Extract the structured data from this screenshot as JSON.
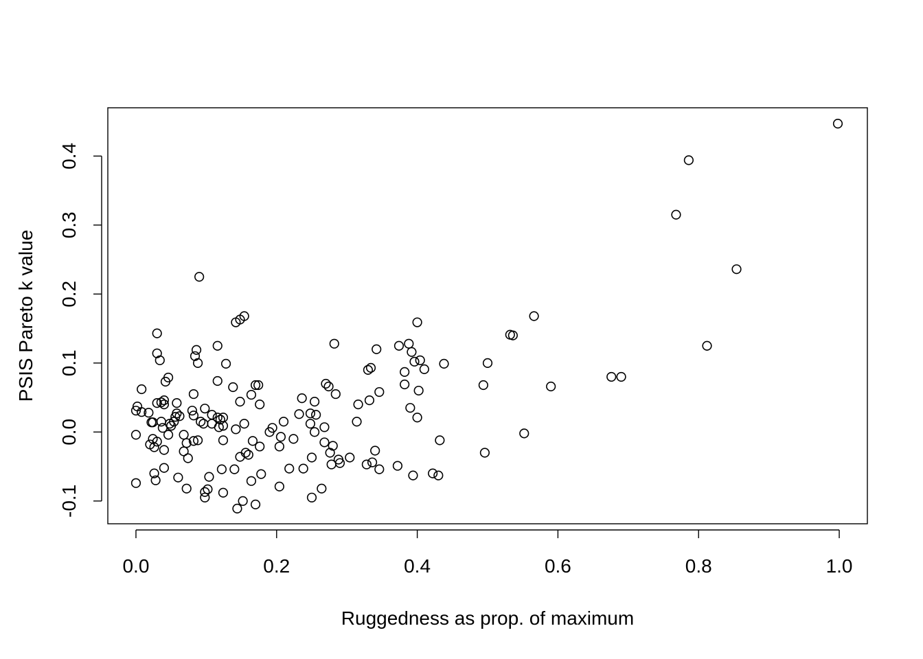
{
  "chart_data": {
    "type": "scatter",
    "title": "",
    "xlabel": "Ruggedness as prop. of maximum",
    "ylabel": "PSIS Pareto k value",
    "xlim": [
      -0.04,
      1.04
    ],
    "ylim": [
      -0.133,
      0.47
    ],
    "x_ticks": [
      0.0,
      0.2,
      0.4,
      0.6,
      0.8,
      1.0
    ],
    "x_tick_labels": [
      "0.0",
      "0.2",
      "0.4",
      "0.6",
      "0.8",
      "1.0"
    ],
    "y_ticks": [
      -0.1,
      0.0,
      0.1,
      0.2,
      0.3,
      0.4
    ],
    "y_tick_labels": [
      "-0.1",
      "0.0",
      "0.1",
      "0.2",
      "0.3",
      "0.4"
    ],
    "grid": false,
    "marker": "open-circle",
    "points": [
      [
        0.0,
        0.031
      ],
      [
        0.002,
        0.037
      ],
      [
        0.008,
        0.029
      ],
      [
        0.0,
        -0.004
      ],
      [
        0.0,
        -0.074
      ],
      [
        0.008,
        0.062
      ],
      [
        0.018,
        0.028
      ],
      [
        0.022,
        0.014
      ],
      [
        0.02,
        -0.018
      ],
      [
        0.024,
        -0.01
      ],
      [
        0.024,
        0.014
      ],
      [
        0.026,
        -0.022
      ],
      [
        0.026,
        -0.06
      ],
      [
        0.028,
        -0.07
      ],
      [
        0.03,
        -0.014
      ],
      [
        0.03,
        0.042
      ],
      [
        0.03,
        0.114
      ],
      [
        0.03,
        0.143
      ],
      [
        0.034,
        0.104
      ],
      [
        0.036,
        0.043
      ],
      [
        0.036,
        0.015
      ],
      [
        0.038,
        0.006
      ],
      [
        0.04,
        0.04
      ],
      [
        0.04,
        0.046
      ],
      [
        0.04,
        -0.026
      ],
      [
        0.04,
        -0.052
      ],
      [
        0.042,
        0.073
      ],
      [
        0.046,
        0.079
      ],
      [
        0.046,
        -0.004
      ],
      [
        0.048,
        0.012
      ],
      [
        0.05,
        0.009
      ],
      [
        0.054,
        0.015
      ],
      [
        0.056,
        0.022
      ],
      [
        0.058,
        0.027
      ],
      [
        0.058,
        0.042
      ],
      [
        0.062,
        0.023
      ],
      [
        0.06,
        -0.066
      ],
      [
        0.068,
        -0.004
      ],
      [
        0.068,
        -0.028
      ],
      [
        0.072,
        -0.082
      ],
      [
        0.072,
        -0.016
      ],
      [
        0.074,
        -0.038
      ],
      [
        0.08,
        0.031
      ],
      [
        0.082,
        0.024
      ],
      [
        0.082,
        -0.013
      ],
      [
        0.082,
        0.055
      ],
      [
        0.084,
        0.11
      ],
      [
        0.086,
        0.119
      ],
      [
        0.088,
        0.1
      ],
      [
        0.088,
        -0.012
      ],
      [
        0.09,
        0.225
      ],
      [
        0.092,
        0.015
      ],
      [
        0.096,
        0.012
      ],
      [
        0.098,
        0.034
      ],
      [
        0.098,
        -0.087
      ],
      [
        0.098,
        -0.095
      ],
      [
        0.102,
        -0.083
      ],
      [
        0.104,
        -0.065
      ],
      [
        0.108,
        0.025
      ],
      [
        0.108,
        0.012
      ],
      [
        0.116,
        0.125
      ],
      [
        0.116,
        0.074
      ],
      [
        0.116,
        0.021
      ],
      [
        0.118,
        0.007
      ],
      [
        0.12,
        0.018
      ],
      [
        0.122,
        -0.054
      ],
      [
        0.124,
        0.009
      ],
      [
        0.124,
        0.021
      ],
      [
        0.124,
        -0.012
      ],
      [
        0.124,
        -0.088
      ],
      [
        0.128,
        0.099
      ],
      [
        0.138,
        0.065
      ],
      [
        0.14,
        -0.054
      ],
      [
        0.142,
        0.004
      ],
      [
        0.142,
        0.159
      ],
      [
        0.144,
        -0.111
      ],
      [
        0.148,
        0.163
      ],
      [
        0.148,
        0.044
      ],
      [
        0.148,
        -0.036
      ],
      [
        0.152,
        -0.1
      ],
      [
        0.154,
        0.168
      ],
      [
        0.154,
        0.012
      ],
      [
        0.156,
        -0.03
      ],
      [
        0.16,
        -0.033
      ],
      [
        0.164,
        0.054
      ],
      [
        0.164,
        -0.071
      ],
      [
        0.166,
        -0.013
      ],
      [
        0.17,
        -0.105
      ],
      [
        0.17,
        0.068
      ],
      [
        0.174,
        0.068
      ],
      [
        0.176,
        0.04
      ],
      [
        0.176,
        -0.021
      ],
      [
        0.178,
        -0.061
      ],
      [
        0.19,
        0.0
      ],
      [
        0.194,
        0.006
      ],
      [
        0.204,
        -0.079
      ],
      [
        0.204,
        -0.021
      ],
      [
        0.206,
        -0.007
      ],
      [
        0.21,
        0.015
      ],
      [
        0.218,
        -0.053
      ],
      [
        0.224,
        -0.01
      ],
      [
        0.232,
        0.026
      ],
      [
        0.236,
        0.049
      ],
      [
        0.238,
        -0.053
      ],
      [
        0.248,
        0.027
      ],
      [
        0.248,
        0.012
      ],
      [
        0.25,
        -0.095
      ],
      [
        0.25,
        -0.037
      ],
      [
        0.254,
        0.044
      ],
      [
        0.254,
        0.0
      ],
      [
        0.256,
        0.025
      ],
      [
        0.264,
        -0.082
      ],
      [
        0.268,
        0.007
      ],
      [
        0.268,
        -0.015
      ],
      [
        0.27,
        0.07
      ],
      [
        0.274,
        0.066
      ],
      [
        0.276,
        -0.03
      ],
      [
        0.278,
        -0.047
      ],
      [
        0.28,
        -0.02
      ],
      [
        0.282,
        0.128
      ],
      [
        0.284,
        0.055
      ],
      [
        0.288,
        -0.04
      ],
      [
        0.29,
        -0.045
      ],
      [
        0.304,
        -0.037
      ],
      [
        0.314,
        0.015
      ],
      [
        0.316,
        0.04
      ],
      [
        0.328,
        -0.047
      ],
      [
        0.33,
        0.09
      ],
      [
        0.332,
        0.046
      ],
      [
        0.334,
        0.093
      ],
      [
        0.336,
        -0.044
      ],
      [
        0.34,
        -0.027
      ],
      [
        0.342,
        0.12
      ],
      [
        0.346,
        -0.054
      ],
      [
        0.346,
        0.058
      ],
      [
        0.372,
        -0.049
      ],
      [
        0.374,
        0.125
      ],
      [
        0.382,
        0.087
      ],
      [
        0.382,
        0.069
      ],
      [
        0.388,
        0.128
      ],
      [
        0.39,
        0.035
      ],
      [
        0.392,
        0.116
      ],
      [
        0.394,
        -0.063
      ],
      [
        0.396,
        0.102
      ],
      [
        0.4,
        0.159
      ],
      [
        0.4,
        0.021
      ],
      [
        0.402,
        0.06
      ],
      [
        0.404,
        0.104
      ],
      [
        0.41,
        0.091
      ],
      [
        0.422,
        -0.06
      ],
      [
        0.43,
        -0.063
      ],
      [
        0.432,
        -0.012
      ],
      [
        0.438,
        0.099
      ],
      [
        0.494,
        0.068
      ],
      [
        0.496,
        -0.03
      ],
      [
        0.5,
        0.1
      ],
      [
        0.532,
        0.141
      ],
      [
        0.536,
        0.14
      ],
      [
        0.552,
        -0.002
      ],
      [
        0.566,
        0.168
      ],
      [
        0.59,
        0.066
      ],
      [
        0.676,
        0.08
      ],
      [
        0.69,
        0.08
      ],
      [
        0.768,
        0.315
      ],
      [
        0.786,
        0.394
      ],
      [
        0.812,
        0.125
      ],
      [
        0.854,
        0.236
      ],
      [
        0.998,
        0.447
      ]
    ]
  }
}
